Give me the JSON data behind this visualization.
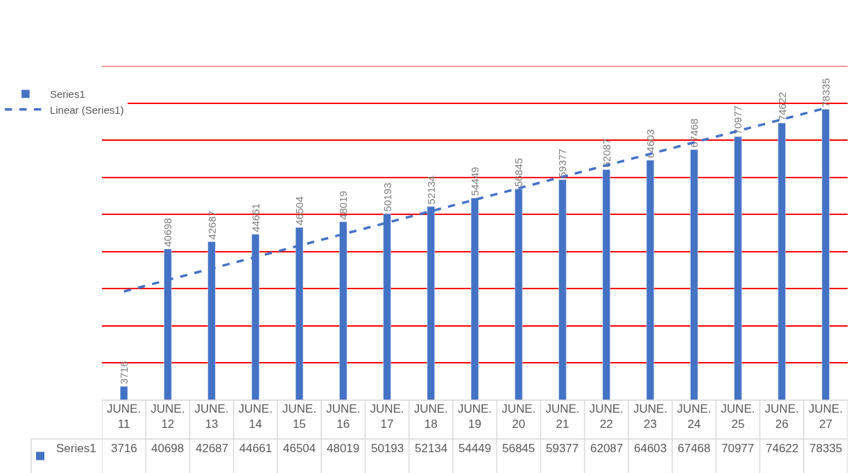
{
  "chart_data": {
    "type": "bar",
    "categories": [
      "JUNE. 11",
      "JUNE. 12",
      "JUNE. 13",
      "JUNE. 14",
      "JUNE. 15",
      "JUNE. 16",
      "JUNE. 17",
      "JUNE. 18",
      "JUNE. 19",
      "JUNE. 20",
      "JUNE. 21",
      "JUNE. 22",
      "JUNE. 23",
      "JUNE. 24",
      "JUNE. 25",
      "JUNE. 26",
      "JUNE. 27"
    ],
    "series": [
      {
        "name": "Series1",
        "color": "#4472c4",
        "values": [
          3716,
          40698,
          42687,
          44661,
          46504,
          48019,
          50193,
          52134,
          54449,
          56845,
          59377,
          62087,
          64603,
          67468,
          70977,
          74622,
          78335
        ],
        "value_labels": [
          "3716",
          "40698",
          "42687",
          "44661",
          "46504",
          "48019",
          "50193",
          "52134",
          "54449",
          "56845",
          "59377",
          "62087",
          "64603",
          "67468",
          "70977",
          "74622",
          "78335"
        ]
      },
      {
        "name": "Linear (Series1)",
        "type": "line",
        "line_style": "dashed",
        "color": "#4472c4",
        "values": [
          29267,
          32354,
          35441,
          38528,
          41615,
          44702,
          47789,
          50876,
          53963,
          57050,
          60137,
          63224,
          66311,
          69398,
          72485,
          75572,
          78659
        ]
      }
    ],
    "ylim": [
      0,
      90000
    ],
    "yticks": [
      {
        "value": 10000,
        "label": null
      },
      {
        "value": 20000,
        "label": null
      },
      {
        "value": 30000,
        "label": null
      },
      {
        "value": 40000,
        "label": null
      },
      {
        "value": 50000,
        "label": null
      },
      {
        "value": 60000,
        "label": null
      },
      {
        "value": 70000,
        "label": null
      },
      {
        "value": 80000,
        "label": null
      },
      {
        "value": 90000,
        "label": null
      }
    ],
    "grid": "y",
    "legend": "left",
    "tick_labels": "x"
  }
}
